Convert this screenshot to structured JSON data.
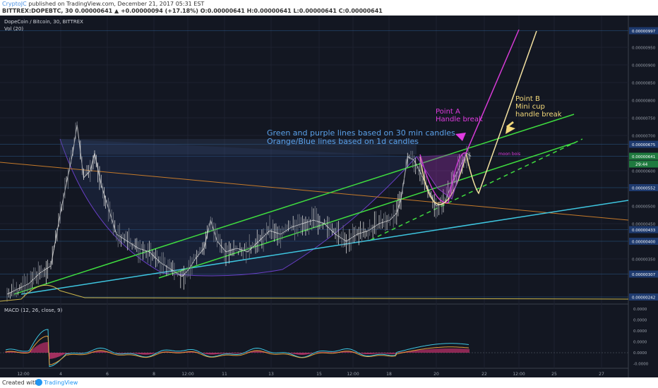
{
  "publish": {
    "author": "CryptoJC",
    "text": "published on TradingView.com, December 21, 2017 05:31 EST",
    "ohlc_line": "BITTREX:DOPEBTC, 30  0.00000641 ▲ +0.00000094 (+17.18%) O:0.00000641 H:0.00000641 L:0.00000641 C:0.00000641"
  },
  "chart": {
    "legend_title": "DopeCoin / Bitcoin, 30, BITTREX",
    "vol_label": "Vol (20)",
    "macd_label": "MACD (12, 26, close, 9)",
    "ann_green": "Green and purple lines based on 30 min candles",
    "ann_orange": "Orange/Blue lines based on 1d candles",
    "point_a_1": "Point A",
    "point_a_2": "Handle break",
    "point_b_1": "Point B",
    "point_b_2": "Mini cup",
    "point_b_3": "handle break",
    "moon_label": "moon bois"
  },
  "footer": {
    "created": "Created with",
    "brand": "TradingView"
  },
  "chart_data": {
    "type": "line",
    "symbol": "DOPEBTC",
    "exchange": "BITTREX",
    "timeframe": "30",
    "x_ticks": [
      "12:00",
      "4",
      "6",
      "8",
      "12:00",
      "11",
      "13",
      "15",
      "12:00",
      "18",
      "20",
      "22",
      "12:00",
      "25",
      "27"
    ],
    "y_ticks": [
      "0.00000997",
      "0.00000950",
      "0.00000900",
      "0.00000850",
      "0.00000800",
      "0.00000750",
      "0.00000700",
      "0.00000675",
      "0.00000641",
      "0.00000600",
      "0.00000552",
      "0.00000500",
      "0.00000450",
      "0.00000433",
      "0.00000400",
      "0.00000350",
      "0.00000307",
      "0.00000242"
    ],
    "highlighted_prices": [
      "0.00000997",
      "0.00000675",
      "0.00000641",
      "0.00000552",
      "0.00000433",
      "0.00000400",
      "0.00000307",
      "0.00000242"
    ],
    "countdown": "29:44",
    "macd_ticks": [
      "0.0000",
      "0.0000",
      "0.0000",
      "0.0000",
      "0.0000",
      "-0.0000"
    ],
    "ylim": [
      2.4e-06,
      1e-05
    ],
    "price_series": {
      "x": [
        0,
        0.5,
        1,
        1.5,
        2,
        2.5,
        3,
        3.2,
        3.5,
        3.8,
        4,
        4.3,
        4.7,
        5,
        5.5,
        6,
        6.5,
        7,
        7.5,
        8,
        8.3,
        8.6,
        9,
        9.3,
        9.6,
        10,
        10.5,
        11,
        11.5,
        12,
        12.5,
        13,
        13.5,
        14,
        14.5,
        15,
        15.5,
        16,
        16.5,
        17,
        17.5,
        17.8,
        18,
        18.3,
        18.6,
        19,
        19.3,
        19.6,
        20,
        20.3,
        20.6,
        21,
        21.2
      ],
      "y": [
        2.5e-06,
        2.65e-06,
        2.8e-06,
        3.1e-06,
        3.3e-06,
        5e-06,
        6.5e-06,
        7.3e-06,
        5.8e-06,
        6e-06,
        6.5e-06,
        5.6e-06,
        4.8e-06,
        4.2e-06,
        4e-06,
        3.8e-06,
        3.7e-06,
        3.4e-06,
        3.2e-06,
        3e-06,
        3.2e-06,
        3.5e-06,
        3.8e-06,
        4.6e-06,
        4e-06,
        3.7e-06,
        3.8e-06,
        3.7e-06,
        4e-06,
        4.3e-06,
        4.2e-06,
        4.4e-06,
        4.5e-06,
        4.6e-06,
        4.5e-06,
        4.2e-06,
        4e-06,
        4.2e-06,
        4.3e-06,
        4.5e-06,
        4.6e-06,
        4.8e-06,
        5.2e-06,
        6.4e-06,
        6.3e-06,
        5.8e-06,
        5.4e-06,
        5e-06,
        5.1e-06,
        5.6e-06,
        6e-06,
        6.5e-06,
        6.41e-06
      ]
    }
  }
}
